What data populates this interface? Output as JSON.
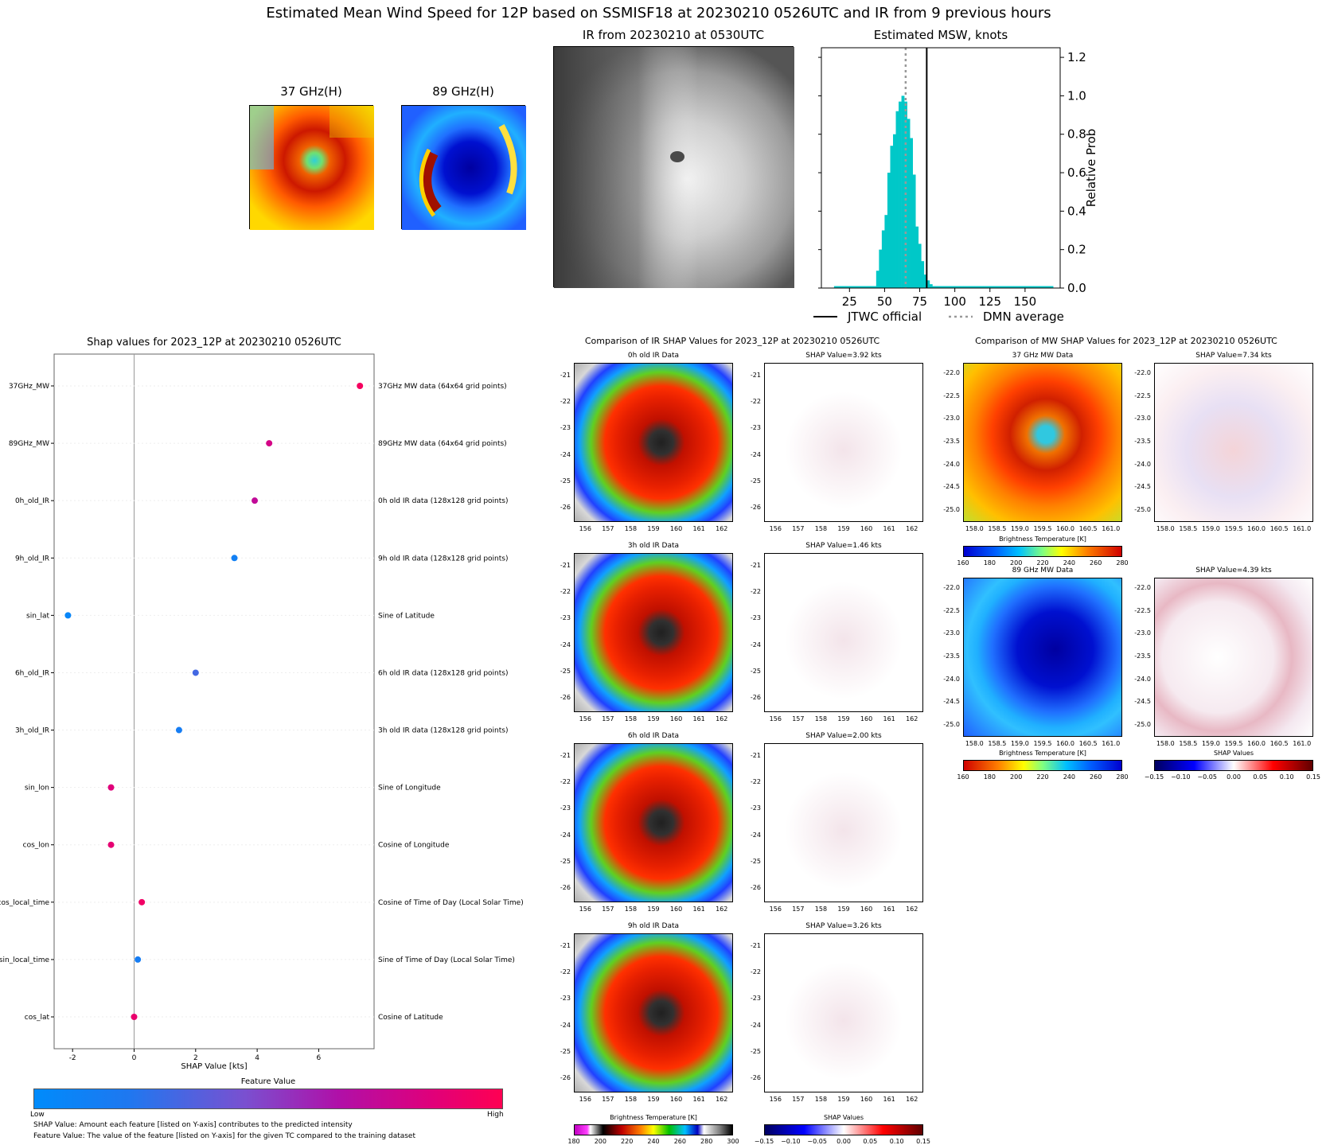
{
  "header": {
    "main_title": "Estimated Mean Wind Speed for 12P based on SSMISF18 at 20230210 0526UTC and IR from 9 previous hours"
  },
  "top_panels": {
    "mw37_title": "37 GHz(H)",
    "mw89_title": "89 GHz(H)",
    "ir_title": "IR from 20230210 at 0530UTC"
  },
  "chart_data": [
    {
      "id": "msw_histogram",
      "type": "bar",
      "title": "Estimated MSW, knots",
      "xlabel": "",
      "ylabel": "Relative Prob",
      "xlim": [
        5,
        175
      ],
      "ylim": [
        0,
        1.25
      ],
      "xticks": [
        25,
        50,
        75,
        100,
        125,
        150
      ],
      "yticks": [
        0.0,
        0.2,
        0.4,
        0.6,
        0.8,
        1.0,
        1.2
      ],
      "bin_width": 2,
      "bins": [
        [
          15,
          0.01
        ],
        [
          17,
          0.01
        ],
        [
          19,
          0.01
        ],
        [
          21,
          0.01
        ],
        [
          23,
          0.01
        ],
        [
          25,
          0.01
        ],
        [
          27,
          0.01
        ],
        [
          29,
          0.01
        ],
        [
          31,
          0.01
        ],
        [
          33,
          0.01
        ],
        [
          35,
          0.01
        ],
        [
          37,
          0.01
        ],
        [
          39,
          0.01
        ],
        [
          41,
          0.01
        ],
        [
          43,
          0.01
        ],
        [
          45,
          0.09
        ],
        [
          47,
          0.2
        ],
        [
          49,
          0.3
        ],
        [
          51,
          0.38
        ],
        [
          53,
          0.6
        ],
        [
          55,
          0.74
        ],
        [
          57,
          0.8
        ],
        [
          59,
          0.92
        ],
        [
          61,
          0.97
        ],
        [
          63,
          1.0
        ],
        [
          65,
          0.97
        ],
        [
          67,
          0.88
        ],
        [
          69,
          0.78
        ],
        [
          71,
          0.59
        ],
        [
          73,
          0.32
        ],
        [
          75,
          0.23
        ],
        [
          77,
          0.14
        ],
        [
          79,
          0.07
        ],
        [
          81,
          0.04
        ],
        [
          83,
          0.02
        ],
        [
          85,
          0.01
        ],
        [
          87,
          0.01
        ],
        [
          89,
          0.01
        ],
        [
          91,
          0.01
        ],
        [
          93,
          0.01
        ],
        [
          95,
          0.01
        ],
        [
          97,
          0.01
        ],
        [
          99,
          0.01
        ],
        [
          101,
          0.01
        ],
        [
          103,
          0.01
        ],
        [
          105,
          0.01
        ],
        [
          107,
          0.01
        ],
        [
          109,
          0.01
        ],
        [
          111,
          0.01
        ],
        [
          113,
          0.01
        ],
        [
          115,
          0.01
        ],
        [
          117,
          0.01
        ],
        [
          119,
          0.01
        ],
        [
          121,
          0.01
        ],
        [
          123,
          0.01
        ],
        [
          125,
          0.01
        ],
        [
          127,
          0.01
        ],
        [
          129,
          0.01
        ],
        [
          131,
          0.01
        ],
        [
          133,
          0.01
        ],
        [
          135,
          0.01
        ],
        [
          137,
          0.01
        ],
        [
          139,
          0.01
        ],
        [
          141,
          0.01
        ],
        [
          143,
          0.01
        ],
        [
          145,
          0.01
        ],
        [
          147,
          0.01
        ],
        [
          149,
          0.01
        ],
        [
          151,
          0.01
        ],
        [
          153,
          0.01
        ],
        [
          155,
          0.01
        ],
        [
          157,
          0.01
        ],
        [
          159,
          0.01
        ],
        [
          161,
          0.01
        ],
        [
          163,
          0.01
        ],
        [
          165,
          0.01
        ],
        [
          167,
          0.01
        ],
        [
          169,
          0.01
        ]
      ],
      "bar_color": "#00c8c8",
      "jtwc_official": 80,
      "dmn_average": 65,
      "legend": [
        "JTWC official",
        "DMN average"
      ]
    },
    {
      "id": "shap_summary",
      "type": "scatter",
      "title": "Shap values for 2023_12P at 20230210 0526UTC",
      "xlabel": "SHAP Value [kts]",
      "xlim": [
        -2.6,
        7.8
      ],
      "xticks": [
        -2,
        0,
        2,
        4,
        6
      ],
      "features": [
        {
          "name": "37GHz_MW",
          "shap": 7.34,
          "desc": "37GHz MW data (64x64 grid points)",
          "value": 0.95
        },
        {
          "name": "89GHz_MW",
          "shap": 4.39,
          "desc": "89GHz MW data (64x64 grid points)",
          "value": 0.8
        },
        {
          "name": "0h_old_IR",
          "shap": 3.92,
          "desc": "0h old IR data (128x128 grid points)",
          "value": 0.72
        },
        {
          "name": "9h_old_IR",
          "shap": 3.26,
          "desc": "9h old IR data (128x128 grid points)",
          "value": 0.12
        },
        {
          "name": "sin_lat",
          "shap": -2.15,
          "desc": "Sine of Latitude",
          "value": 0.05
        },
        {
          "name": "6h_old_IR",
          "shap": 2.0,
          "desc": "6h old IR data (128x128 grid points)",
          "value": 0.3
        },
        {
          "name": "3h_old_IR",
          "shap": 1.46,
          "desc": "3h old IR data (128x128 grid points)",
          "value": 0.15
        },
        {
          "name": "sin_lon",
          "shap": -0.75,
          "desc": "Sine of Longitude",
          "value": 0.85
        },
        {
          "name": "cos_lon",
          "shap": -0.75,
          "desc": "Cosine of Longitude",
          "value": 0.88
        },
        {
          "name": "cos_local_time",
          "shap": 0.25,
          "desc": "Cosine of Time of Day (Local Solar Time)",
          "value": 0.93
        },
        {
          "name": "sin_local_time",
          "shap": 0.12,
          "desc": "Sine of Time of Day (Local Solar Time)",
          "value": 0.15
        },
        {
          "name": "cos_lat",
          "shap": 0.0,
          "desc": "Cosine of Latitude",
          "value": 0.9
        }
      ],
      "colorbar": {
        "title": "Feature Value",
        "low": "Low",
        "high": "High"
      }
    }
  ],
  "notes": {
    "note1": "SHAP Value: Amount each feature [listed on Y-axis] contributes to the predicted intensity",
    "note2": "Feature Value: The value of the feature [listed on Y-axis] for the given TC compared to the training dataset"
  },
  "ir_comparison": {
    "title": "Comparison of IR SHAP Values for 2023_12P at 20230210 0526UTC",
    "panels": [
      {
        "data_title": "0h old IR Data",
        "shap_title": "SHAP Value=3.92 kts"
      },
      {
        "data_title": "3h old IR Data",
        "shap_title": "SHAP Value=1.46 kts"
      },
      {
        "data_title": "6h old IR Data",
        "shap_title": "SHAP Value=2.00 kts"
      },
      {
        "data_title": "9h old IR Data",
        "shap_title": "SHAP Value=3.26 kts"
      }
    ],
    "yticks": [
      "-21",
      "-22",
      "-23",
      "-24",
      "-25",
      "-26"
    ],
    "xticks": [
      "156",
      "157",
      "158",
      "159",
      "160",
      "161",
      "162"
    ],
    "bt_cbar_title": "Brightness Temperature [K]",
    "bt_cbar_ticks": [
      "180",
      "200",
      "220",
      "240",
      "260",
      "280",
      "300"
    ],
    "shap_cbar_title": "SHAP Values",
    "shap_cbar_ticks": [
      "−0.15",
      "−0.10",
      "−0.05",
      "0.00",
      "0.05",
      "0.10",
      "0.15"
    ]
  },
  "mw_comparison": {
    "title": "Comparison of MW SHAP Values for 2023_12P at 20230210 0526UTC",
    "panels": [
      {
        "data_title": "37 GHz MW Data",
        "shap_title": "SHAP Value=7.34 kts"
      },
      {
        "data_title": "89 GHz MW Data",
        "shap_title": "SHAP Value=4.39 kts"
      }
    ],
    "yticks": [
      "-22.0",
      "-22.5",
      "-23.0",
      "-23.5",
      "-24.0",
      "-24.5",
      "-25.0"
    ],
    "xticks": [
      "158.0",
      "158.5",
      "159.0",
      "159.5",
      "160.0",
      "160.5",
      "161.0"
    ],
    "bt_cbar_title": "Brightness Temperature [K]",
    "bt_cbar_ticks": [
      "160",
      "180",
      "200",
      "220",
      "240",
      "260",
      "280"
    ],
    "shap_cbar_title": "SHAP Values",
    "shap_cbar_ticks": [
      "−0.15",
      "−0.10",
      "−0.05",
      "0.00",
      "0.05",
      "0.10",
      "0.15"
    ]
  }
}
